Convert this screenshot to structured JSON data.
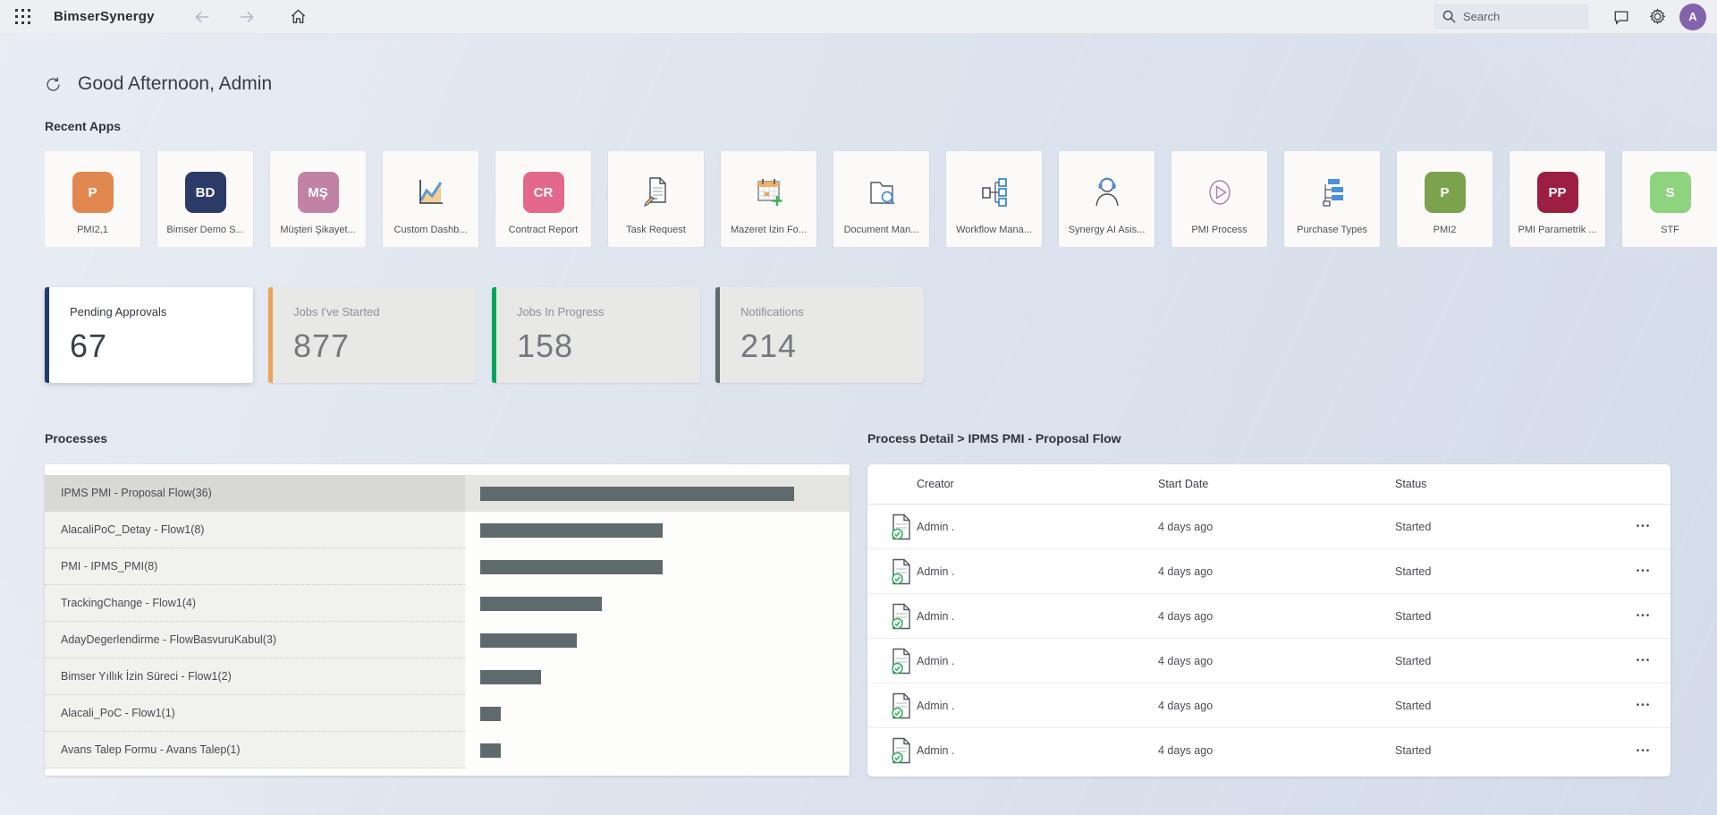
{
  "topbar": {
    "app_title": "BimserSynergy",
    "search_placeholder": "Search",
    "avatar_initial": "A"
  },
  "greeting": {
    "text": "Good Afternoon, Admin"
  },
  "recent_apps": {
    "title": "Recent Apps",
    "items": [
      {
        "label": "PMI2,1",
        "badge": "P",
        "badge_color": "#e0884f"
      },
      {
        "label": "Bimser Demo S...",
        "badge": "BD",
        "badge_color": "#2b3a67"
      },
      {
        "label": "Müşteri Şikayet...",
        "badge": "MŞ",
        "badge_color": "#c282a5"
      },
      {
        "label": "Custom Dashb...",
        "icon": "area-chart-icon"
      },
      {
        "label": "Contract Report",
        "badge": "CR",
        "badge_color": "#e4688b"
      },
      {
        "label": "Task Request",
        "icon": "document-pen-icon"
      },
      {
        "label": "Mazeret İzin Fo...",
        "icon": "calendar-plus-icon"
      },
      {
        "label": "Document Man...",
        "icon": "folder-search-icon"
      },
      {
        "label": "Workflow Mana...",
        "icon": "workflow-icon"
      },
      {
        "label": "Synergy AI Asis...",
        "icon": "headset-agent-icon"
      },
      {
        "label": "PMI Process",
        "icon": "play-circle-icon"
      },
      {
        "label": "Purchase Types",
        "icon": "list-tree-icon"
      },
      {
        "label": "PMI2",
        "badge": "P",
        "badge_color": "#7da24d"
      },
      {
        "label": "PMI Parametrik ...",
        "badge": "PP",
        "badge_color": "#9c1f42"
      },
      {
        "label": "STF",
        "badge": "S",
        "badge_color": "#8ed47e"
      }
    ]
  },
  "stats": {
    "cards": [
      {
        "label": "Pending Approvals",
        "value": "67",
        "accent": "#1e3c6d",
        "active": true
      },
      {
        "label": "Jobs I've Started",
        "value": "877",
        "accent": "#f0a254",
        "active": false
      },
      {
        "label": "Jobs In Progress",
        "value": "158",
        "accent": "#00a65a",
        "active": false
      },
      {
        "label": "Notifications",
        "value": "214",
        "accent": "#5f6b6d",
        "active": false
      }
    ]
  },
  "processes": {
    "title": "Processes",
    "items": [
      {
        "label": "IPMS PMI - Proposal Flow(36)",
        "count": 36,
        "selected": true
      },
      {
        "label": "AlacaliPoC_Detay - Flow1(8)",
        "count": 8,
        "selected": false
      },
      {
        "label": "PMI - IPMS_PMI(8)",
        "count": 8,
        "selected": false
      },
      {
        "label": "TrackingChange - Flow1(4)",
        "count": 4,
        "selected": false
      },
      {
        "label": "AdayDegerlendirme - FlowBasvuruKabul(3)",
        "count": 3,
        "selected": false
      },
      {
        "label": "Bimser Yıllık İzin Süreci - Flow1(2)",
        "count": 2,
        "selected": false
      },
      {
        "label": "Alacali_PoC - Flow1(1)",
        "count": 1,
        "selected": false
      },
      {
        "label": "Avans Talep Formu - Avans Talep(1)",
        "count": 1,
        "selected": false
      }
    ]
  },
  "chart_data": {
    "type": "bar",
    "orientation": "horizontal",
    "title": "Processes",
    "categories": [
      "IPMS PMI - Proposal Flow",
      "AlacaliPoC_Detay - Flow1",
      "PMI - IPMS_PMI",
      "TrackingChange - Flow1",
      "AdayDegerlendirme - FlowBasvuruKabul",
      "Bimser Yıllık İzin Süreci - Flow1",
      "Alacali_PoC - Flow1",
      "Avans Talep Formu - Avans Talep"
    ],
    "values": [
      36,
      8,
      8,
      4,
      3,
      2,
      1,
      1
    ],
    "bar_color": "#5e6a6c",
    "scale": "log",
    "legend": false,
    "grid": false
  },
  "process_detail": {
    "title": "Process Detail > IPMS PMI - Proposal Flow",
    "columns": [
      "Creator",
      "Start Date",
      "Status"
    ],
    "rows": [
      {
        "creator": "Admin .",
        "start_date": "4 days ago",
        "status": "Started",
        "menu": "•••"
      },
      {
        "creator": "Admin .",
        "start_date": "4 days ago",
        "status": "Started",
        "menu": "•••"
      },
      {
        "creator": "Admin .",
        "start_date": "4 days ago",
        "status": "Started",
        "menu": "•••"
      },
      {
        "creator": "Admin .",
        "start_date": "4 days ago",
        "status": "Started",
        "menu": "•••"
      },
      {
        "creator": "Admin .",
        "start_date": "4 days ago",
        "status": "Started",
        "menu": "•••"
      },
      {
        "creator": "Admin .",
        "start_date": "4 days ago",
        "status": "Started",
        "menu": "•••"
      }
    ]
  },
  "colors": {
    "bar": "#5e6a6c",
    "avatar": "#8463ad",
    "topbar_bg": "#edeff3"
  }
}
